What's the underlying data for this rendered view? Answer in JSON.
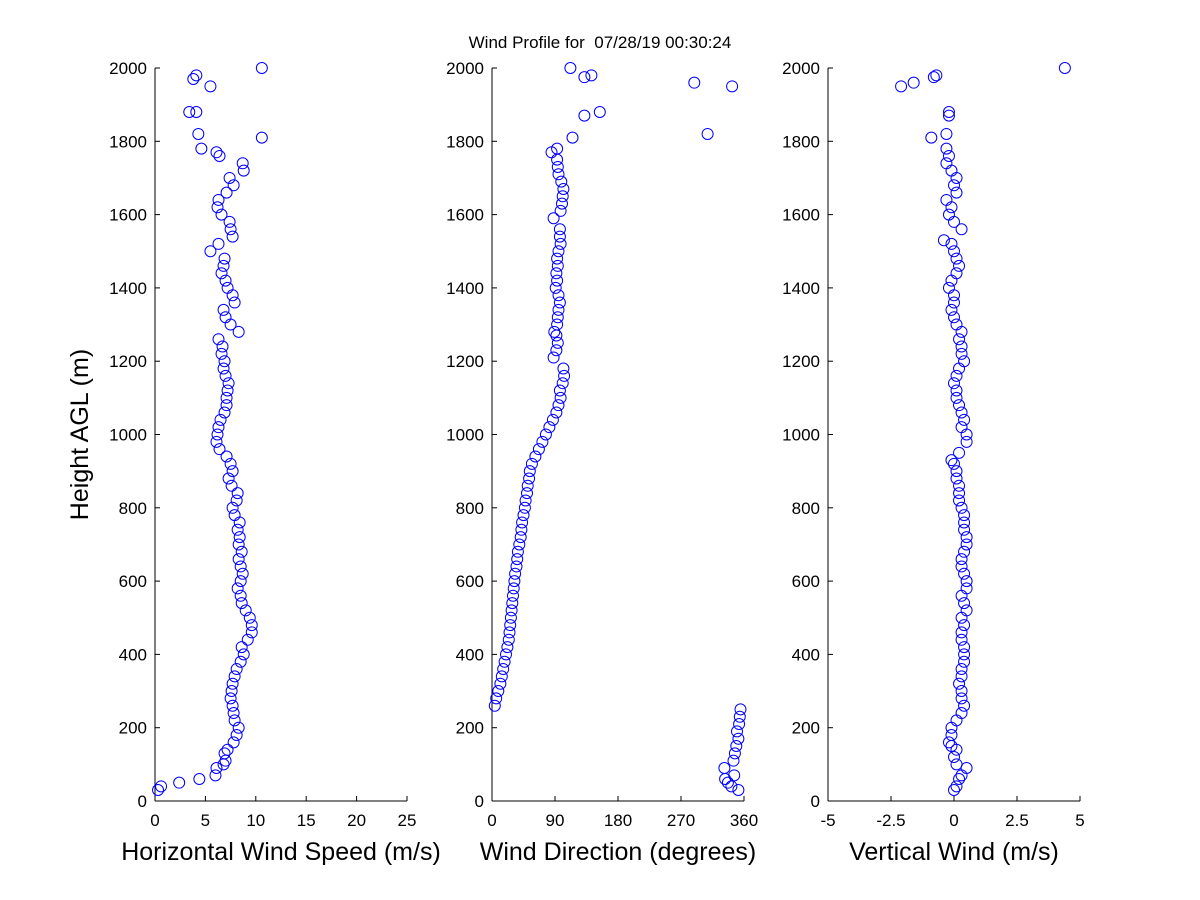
{
  "figure": {
    "title": "Wind Profile for  07/28/19 00:30:24",
    "marker_color": "#0000ff",
    "axis_color": "#000000",
    "background": "#ffffff"
  },
  "chart_data": [
    {
      "type": "scatter",
      "xlabel": "Horizontal Wind Speed (m/s)",
      "ylabel": "Height AGL (m)",
      "xlim": [
        0,
        25
      ],
      "ylim": [
        0,
        2000
      ],
      "xticks": [
        "0",
        "5",
        "10",
        "15",
        "20",
        "25"
      ],
      "yticks": [
        "0",
        "200",
        "400",
        "600",
        "800",
        "1000",
        "1200",
        "1400",
        "1600",
        "1800",
        "2000"
      ],
      "grid": false,
      "points": [
        [
          0.3,
          30
        ],
        [
          0.6,
          40
        ],
        [
          2.4,
          50
        ],
        [
          4.4,
          60
        ],
        [
          6.0,
          70
        ],
        [
          6.1,
          90
        ],
        [
          6.8,
          100
        ],
        [
          7.0,
          110
        ],
        [
          6.9,
          130
        ],
        [
          7.2,
          140
        ],
        [
          7.8,
          160
        ],
        [
          8.1,
          180
        ],
        [
          8.3,
          200
        ],
        [
          7.9,
          220
        ],
        [
          7.8,
          240
        ],
        [
          7.7,
          260
        ],
        [
          7.5,
          280
        ],
        [
          7.6,
          300
        ],
        [
          7.7,
          320
        ],
        [
          7.9,
          340
        ],
        [
          8.1,
          360
        ],
        [
          8.5,
          380
        ],
        [
          8.8,
          400
        ],
        [
          8.6,
          420
        ],
        [
          9.2,
          440
        ],
        [
          9.6,
          460
        ],
        [
          9.6,
          480
        ],
        [
          9.4,
          500
        ],
        [
          9.0,
          520
        ],
        [
          8.6,
          540
        ],
        [
          8.5,
          560
        ],
        [
          8.2,
          580
        ],
        [
          8.5,
          600
        ],
        [
          8.7,
          620
        ],
        [
          8.5,
          640
        ],
        [
          8.3,
          660
        ],
        [
          8.6,
          680
        ],
        [
          8.3,
          700
        ],
        [
          8.4,
          720
        ],
        [
          8.2,
          740
        ],
        [
          8.4,
          760
        ],
        [
          7.9,
          780
        ],
        [
          7.7,
          800
        ],
        [
          8.1,
          820
        ],
        [
          8.2,
          840
        ],
        [
          7.6,
          860
        ],
        [
          7.3,
          880
        ],
        [
          7.7,
          900
        ],
        [
          7.5,
          920
        ],
        [
          7.1,
          940
        ],
        [
          6.4,
          960
        ],
        [
          6.1,
          980
        ],
        [
          6.2,
          1000
        ],
        [
          6.3,
          1020
        ],
        [
          6.5,
          1040
        ],
        [
          6.9,
          1060
        ],
        [
          7.1,
          1080
        ],
        [
          7.1,
          1100
        ],
        [
          7.2,
          1120
        ],
        [
          7.3,
          1140
        ],
        [
          7.0,
          1160
        ],
        [
          6.8,
          1180
        ],
        [
          6.9,
          1200
        ],
        [
          6.6,
          1220
        ],
        [
          6.7,
          1240
        ],
        [
          6.3,
          1260
        ],
        [
          8.3,
          1280
        ],
        [
          7.5,
          1300
        ],
        [
          7.0,
          1320
        ],
        [
          6.8,
          1340
        ],
        [
          7.9,
          1360
        ],
        [
          7.7,
          1380
        ],
        [
          7.2,
          1400
        ],
        [
          7.0,
          1420
        ],
        [
          6.6,
          1440
        ],
        [
          6.8,
          1460
        ],
        [
          6.9,
          1480
        ],
        [
          5.5,
          1500
        ],
        [
          6.3,
          1520
        ],
        [
          7.7,
          1540
        ],
        [
          7.5,
          1560
        ],
        [
          7.4,
          1580
        ],
        [
          6.6,
          1600
        ],
        [
          6.2,
          1620
        ],
        [
          6.3,
          1640
        ],
        [
          7.1,
          1660
        ],
        [
          7.8,
          1680
        ],
        [
          7.4,
          1700
        ],
        [
          8.8,
          1720
        ],
        [
          8.7,
          1740
        ],
        [
          6.4,
          1760
        ],
        [
          6.1,
          1770
        ],
        [
          4.6,
          1780
        ],
        [
          4.3,
          1820
        ],
        [
          10.6,
          1810
        ],
        [
          4.1,
          1880
        ],
        [
          3.4,
          1880
        ],
        [
          5.5,
          1950
        ],
        [
          3.8,
          1970
        ],
        [
          4.1,
          1980
        ],
        [
          10.6,
          2000
        ]
      ]
    },
    {
      "type": "scatter",
      "xlabel": "Wind Direction (degrees)",
      "ylabel": "",
      "xlim": [
        0,
        360
      ],
      "ylim": [
        0,
        2000
      ],
      "xticks": [
        "0",
        "90",
        "180",
        "270",
        "360"
      ],
      "yticks": [
        "0",
        "200",
        "400",
        "600",
        "800",
        "1000",
        "1200",
        "1400",
        "1600",
        "1800",
        "2000"
      ],
      "grid": false,
      "points": [
        [
          352,
          30
        ],
        [
          342,
          40
        ],
        [
          337,
          50
        ],
        [
          333,
          60
        ],
        [
          346,
          70
        ],
        [
          332,
          90
        ],
        [
          345,
          110
        ],
        [
          347,
          130
        ],
        [
          349,
          150
        ],
        [
          352,
          170
        ],
        [
          350,
          190
        ],
        [
          353,
          210
        ],
        [
          354,
          230
        ],
        [
          355,
          250
        ],
        [
          4,
          260
        ],
        [
          6,
          280
        ],
        [
          9,
          300
        ],
        [
          12,
          320
        ],
        [
          14,
          340
        ],
        [
          16,
          360
        ],
        [
          18,
          380
        ],
        [
          20,
          400
        ],
        [
          22,
          420
        ],
        [
          24,
          440
        ],
        [
          25,
          460
        ],
        [
          26,
          480
        ],
        [
          27,
          500
        ],
        [
          28,
          520
        ],
        [
          29,
          540
        ],
        [
          30,
          560
        ],
        [
          31,
          580
        ],
        [
          32,
          600
        ],
        [
          33,
          620
        ],
        [
          35,
          640
        ],
        [
          36,
          660
        ],
        [
          37,
          680
        ],
        [
          39,
          700
        ],
        [
          41,
          720
        ],
        [
          42,
          740
        ],
        [
          43,
          760
        ],
        [
          45,
          780
        ],
        [
          47,
          800
        ],
        [
          48,
          820
        ],
        [
          50,
          840
        ],
        [
          51,
          860
        ],
        [
          53,
          880
        ],
        [
          54,
          900
        ],
        [
          57,
          920
        ],
        [
          62,
          940
        ],
        [
          67,
          960
        ],
        [
          72,
          980
        ],
        [
          77,
          1000
        ],
        [
          82,
          1020
        ],
        [
          87,
          1040
        ],
        [
          92,
          1060
        ],
        [
          95,
          1080
        ],
        [
          98,
          1100
        ],
        [
          97,
          1120
        ],
        [
          101,
          1140
        ],
        [
          103,
          1160
        ],
        [
          102,
          1180
        ],
        [
          88,
          1210
        ],
        [
          92,
          1230
        ],
        [
          94,
          1250
        ],
        [
          92,
          1270
        ],
        [
          89,
          1280
        ],
        [
          93,
          1300
        ],
        [
          94,
          1320
        ],
        [
          95,
          1340
        ],
        [
          97,
          1360
        ],
        [
          95,
          1380
        ],
        [
          91,
          1400
        ],
        [
          93,
          1420
        ],
        [
          92,
          1440
        ],
        [
          94,
          1460
        ],
        [
          93,
          1480
        ],
        [
          95,
          1500
        ],
        [
          98,
          1520
        ],
        [
          97,
          1540
        ],
        [
          97,
          1560
        ],
        [
          88,
          1590
        ],
        [
          98,
          1610
        ],
        [
          100,
          1630
        ],
        [
          101,
          1650
        ],
        [
          102,
          1670
        ],
        [
          99,
          1690
        ],
        [
          95,
          1710
        ],
        [
          94,
          1730
        ],
        [
          93,
          1750
        ],
        [
          85,
          1770
        ],
        [
          93,
          1780
        ],
        [
          115,
          1810
        ],
        [
          132,
          1870
        ],
        [
          154,
          1880
        ],
        [
          142,
          1980
        ],
        [
          132,
          1975
        ],
        [
          112,
          2000
        ],
        [
          308,
          1820
        ],
        [
          289,
          1960
        ],
        [
          343,
          1950
        ]
      ]
    },
    {
      "type": "scatter",
      "xlabel": "Vertical Wind (m/s)",
      "ylabel": "",
      "xlim": [
        -5,
        5
      ],
      "ylim": [
        0,
        2000
      ],
      "xticks": [
        "-5",
        "-2.5",
        "0",
        "2.5",
        "5"
      ],
      "yticks": [
        "0",
        "200",
        "400",
        "600",
        "800",
        "1000",
        "1200",
        "1400",
        "1600",
        "1800",
        "2000"
      ],
      "grid": false,
      "points": [
        [
          0.0,
          30
        ],
        [
          0.1,
          40
        ],
        [
          0.2,
          60
        ],
        [
          0.3,
          70
        ],
        [
          0.5,
          90
        ],
        [
          0.1,
          100
        ],
        [
          0.0,
          120
        ],
        [
          0.1,
          140
        ],
        [
          -0.1,
          150
        ],
        [
          -0.2,
          160
        ],
        [
          -0.1,
          180
        ],
        [
          -0.1,
          200
        ],
        [
          0.1,
          220
        ],
        [
          0.3,
          240
        ],
        [
          0.4,
          260
        ],
        [
          0.3,
          280
        ],
        [
          0.3,
          300
        ],
        [
          0.2,
          320
        ],
        [
          0.3,
          340
        ],
        [
          0.3,
          360
        ],
        [
          0.4,
          380
        ],
        [
          0.4,
          400
        ],
        [
          0.4,
          420
        ],
        [
          0.3,
          440
        ],
        [
          0.3,
          460
        ],
        [
          0.4,
          480
        ],
        [
          0.3,
          500
        ],
        [
          0.5,
          520
        ],
        [
          0.4,
          540
        ],
        [
          0.3,
          560
        ],
        [
          0.5,
          580
        ],
        [
          0.5,
          600
        ],
        [
          0.4,
          620
        ],
        [
          0.3,
          640
        ],
        [
          0.3,
          660
        ],
        [
          0.4,
          680
        ],
        [
          0.5,
          700
        ],
        [
          0.5,
          720
        ],
        [
          0.4,
          740
        ],
        [
          0.4,
          760
        ],
        [
          0.4,
          780
        ],
        [
          0.3,
          800
        ],
        [
          0.2,
          820
        ],
        [
          0.2,
          840
        ],
        [
          0.2,
          860
        ],
        [
          0.1,
          880
        ],
        [
          0.1,
          900
        ],
        [
          0.0,
          920
        ],
        [
          -0.1,
          930
        ],
        [
          0.2,
          950
        ],
        [
          0.5,
          980
        ],
        [
          0.5,
          1000
        ],
        [
          0.3,
          1020
        ],
        [
          0.4,
          1040
        ],
        [
          0.3,
          1060
        ],
        [
          0.2,
          1080
        ],
        [
          0.1,
          1100
        ],
        [
          0.1,
          1120
        ],
        [
          0.0,
          1140
        ],
        [
          0.1,
          1160
        ],
        [
          0.2,
          1180
        ],
        [
          0.4,
          1200
        ],
        [
          0.3,
          1220
        ],
        [
          0.3,
          1240
        ],
        [
          0.2,
          1260
        ],
        [
          0.3,
          1280
        ],
        [
          0.1,
          1300
        ],
        [
          0.0,
          1320
        ],
        [
          -0.1,
          1340
        ],
        [
          0.0,
          1360
        ],
        [
          0.0,
          1380
        ],
        [
          -0.2,
          1400
        ],
        [
          -0.1,
          1420
        ],
        [
          0.1,
          1440
        ],
        [
          0.2,
          1460
        ],
        [
          0.1,
          1480
        ],
        [
          0.0,
          1500
        ],
        [
          -0.1,
          1520
        ],
        [
          -0.4,
          1530
        ],
        [
          0.3,
          1560
        ],
        [
          0.0,
          1580
        ],
        [
          -0.2,
          1600
        ],
        [
          -0.1,
          1620
        ],
        [
          -0.3,
          1640
        ],
        [
          0.1,
          1660
        ],
        [
          0.0,
          1680
        ],
        [
          0.1,
          1700
        ],
        [
          -0.1,
          1720
        ],
        [
          -0.3,
          1740
        ],
        [
          -0.2,
          1760
        ],
        [
          -0.3,
          1780
        ],
        [
          -0.9,
          1810
        ],
        [
          -0.3,
          1820
        ],
        [
          -0.2,
          1870
        ],
        [
          -0.2,
          1880
        ],
        [
          -2.1,
          1950
        ],
        [
          -1.6,
          1960
        ],
        [
          -0.8,
          1975
        ],
        [
          -0.7,
          1980
        ],
        [
          4.4,
          2000
        ]
      ]
    }
  ]
}
